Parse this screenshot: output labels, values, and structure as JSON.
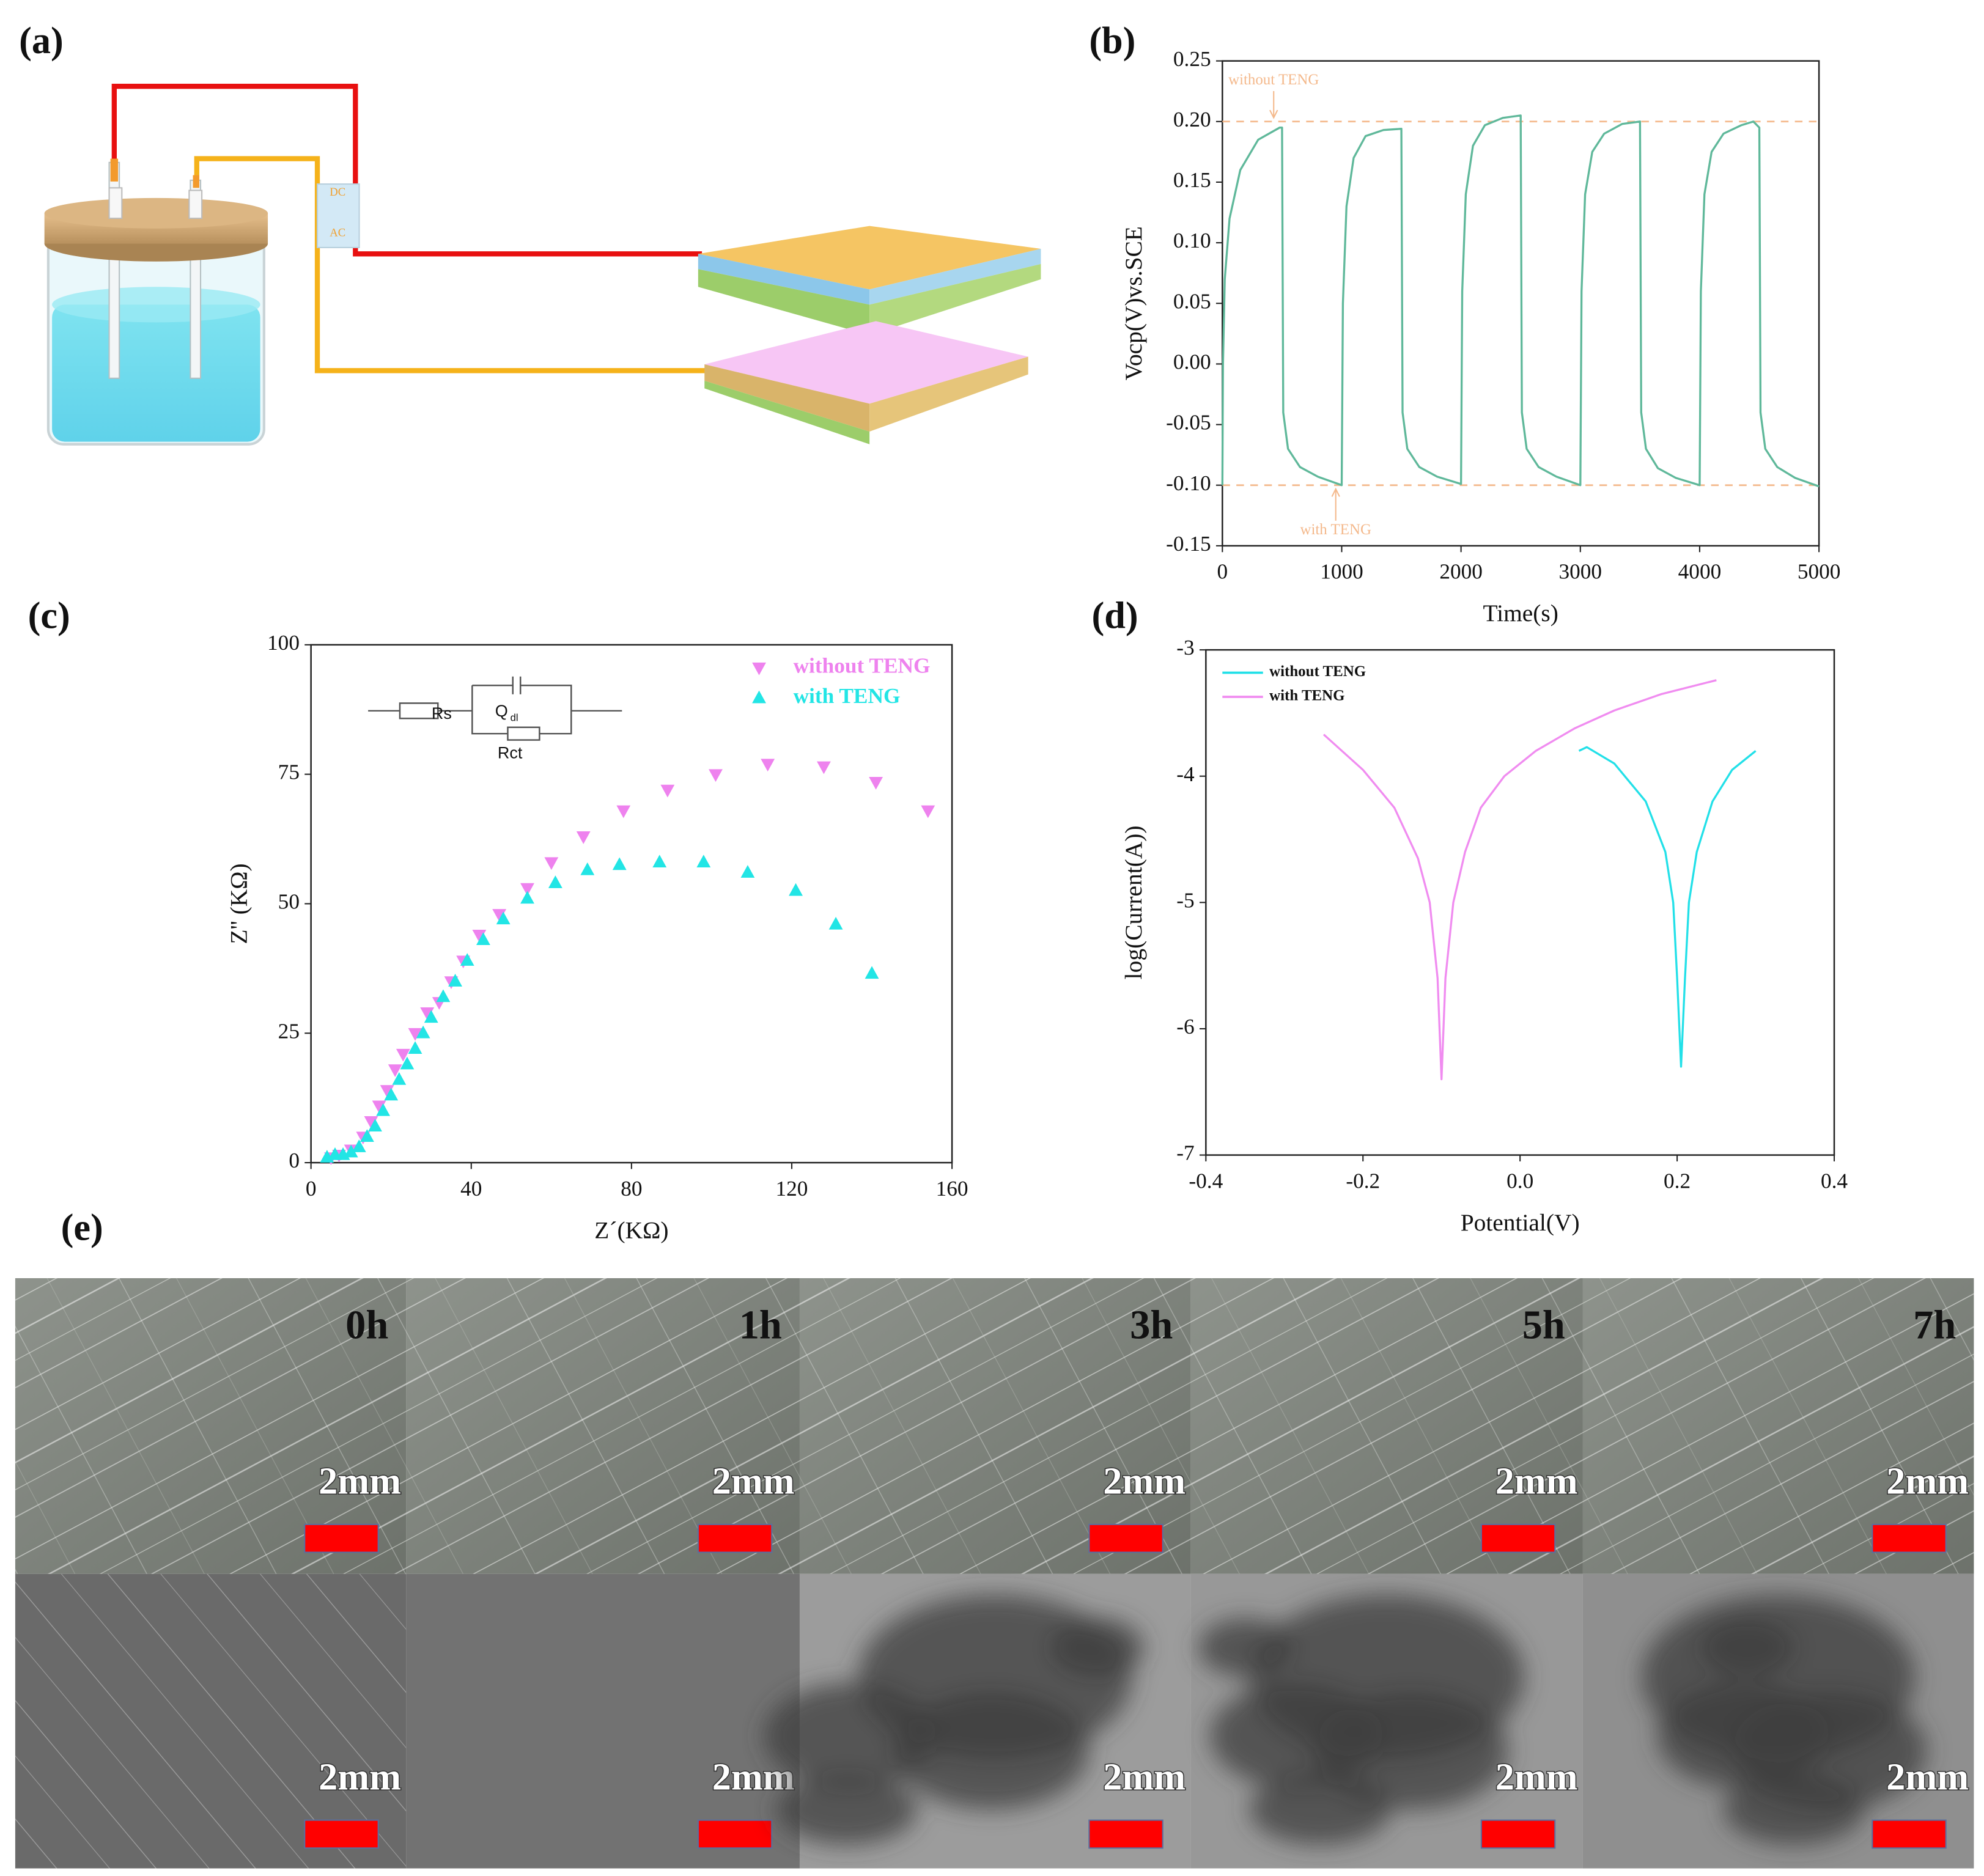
{
  "panel_labels": [
    "(a)",
    "(b)",
    "(c)",
    "(d)",
    "(e)"
  ],
  "diagram": {
    "labels": [
      "DC",
      "AC"
    ]
  },
  "chart_data": [
    {
      "type": "line",
      "xlabel": "Time(s)",
      "ylabel": "Vocp(V)vs.SCE",
      "xlim": [
        0,
        5000
      ],
      "xticks": [
        0,
        1000,
        2000,
        3000,
        4000,
        5000
      ],
      "ylim": [
        -0.15,
        0.25
      ],
      "yticks": [
        -0.15,
        {
          "value": -0.1,
          "label": "-0.10"
        },
        -0.05,
        {
          "value": 0,
          "label": "0.00"
        },
        0.05,
        {
          "value": 0.1,
          "label": "0.10"
        },
        0.15,
        {
          "value": 0.2,
          "label": "0.20"
        },
        0.25
      ],
      "reference_lines": [
        {
          "value": 0.2,
          "label": "without TENG",
          "color": "#f4b98c"
        },
        {
          "value": -0.1,
          "label": "with TENG",
          "color": "#f4b98c"
        }
      ],
      "series": [
        {
          "color": "#5fb89a",
          "x": [
            0,
            5,
            20,
            60,
            150,
            300,
            480,
            500,
            510,
            550,
            650,
            800,
            1000,
            1010,
            1040,
            1100,
            1200,
            1350,
            1500,
            1510,
            1550,
            1650,
            1800,
            2000,
            2010,
            2040,
            2100,
            2200,
            2350,
            2500,
            2510,
            2550,
            2650,
            2800,
            3000,
            3010,
            3040,
            3100,
            3200,
            3350,
            3500,
            3510,
            3550,
            3650,
            3800,
            4000,
            4010,
            4040,
            4100,
            4200,
            4350,
            4450,
            4500,
            4510,
            4550,
            4650,
            4800,
            5000
          ],
          "values": [
            -0.1,
            0.0,
            0.07,
            0.12,
            0.16,
            0.185,
            0.195,
            0.195,
            -0.04,
            -0.07,
            -0.085,
            -0.093,
            -0.1,
            0.05,
            0.13,
            0.17,
            0.188,
            0.193,
            0.194,
            -0.04,
            -0.07,
            -0.085,
            -0.093,
            -0.099,
            0.06,
            0.14,
            0.18,
            0.197,
            0.203,
            0.205,
            -0.04,
            -0.07,
            -0.085,
            -0.093,
            -0.1,
            0.06,
            0.14,
            0.175,
            0.19,
            0.198,
            0.2,
            -0.04,
            -0.07,
            -0.086,
            -0.094,
            -0.1,
            0.06,
            0.14,
            0.175,
            0.19,
            0.197,
            0.2,
            0.195,
            -0.04,
            -0.07,
            -0.085,
            -0.094,
            -0.101
          ]
        }
      ]
    },
    {
      "type": "scatter",
      "xlabel": "Z´(KΩ)",
      "ylabel": "Z'' (KΩ)",
      "xlim": [
        0,
        160
      ],
      "xticks": [
        0,
        40,
        80,
        120,
        160
      ],
      "ylim": [
        0,
        100
      ],
      "yticks": [
        0,
        25,
        50,
        75,
        100
      ],
      "legend": "upper right",
      "inset": {
        "labels": [
          "Rs",
          "Q",
          "dl",
          "Rct"
        ]
      },
      "series": [
        {
          "name": "without TENG",
          "color": "#ee82ee",
          "marker": "triangle-down",
          "x": [
            5,
            7,
            10,
            13,
            15,
            17,
            19,
            21,
            23,
            26,
            29,
            32,
            35,
            38,
            42,
            47,
            54,
            60,
            68,
            78,
            89,
            101,
            114,
            128,
            141,
            154
          ],
          "values": [
            1,
            1.5,
            2.5,
            5,
            8,
            11,
            14,
            18,
            21,
            25,
            29,
            31,
            35,
            39,
            44,
            48,
            53,
            58,
            63,
            68,
            72,
            75,
            77,
            76.5,
            73.5,
            68
          ]
        },
        {
          "name": "with TENG",
          "color": "#22e5e5",
          "marker": "triangle-up",
          "x": [
            4,
            6,
            8,
            10,
            12,
            14,
            16,
            18,
            20,
            22,
            24,
            26,
            28,
            30,
            33,
            36,
            39,
            43,
            48,
            54,
            61,
            69,
            77,
            87,
            98,
            109,
            121,
            131,
            140
          ],
          "values": [
            1,
            1.5,
            1.5,
            2,
            3,
            5,
            7,
            10,
            13,
            16,
            19,
            22,
            25,
            28,
            32,
            35,
            39,
            43,
            47,
            51,
            54,
            56.5,
            57.5,
            58,
            58,
            56,
            52.5,
            46,
            36.5
          ]
        }
      ]
    },
    {
      "type": "line",
      "xlabel": "Potential(V)",
      "ylabel": "log(Current(A))",
      "xlim": [
        -0.4,
        0.4
      ],
      "xticks": [
        -0.4,
        -0.2,
        {
          "value": 0,
          "label": "0.0"
        },
        0.2,
        0.4
      ],
      "ylim": [
        -7,
        -3
      ],
      "yticks": [
        -7,
        -6,
        -5,
        -4,
        -3
      ],
      "legend": "upper left",
      "series": [
        {
          "name": "without TENG",
          "color": "#22e0e8",
          "x": [
            0.075,
            0.085,
            0.12,
            0.16,
            0.185,
            0.195,
            0.2,
            0.205,
            0.21,
            0.215,
            0.225,
            0.245,
            0.27,
            0.3
          ],
          "values": [
            -3.8,
            -3.77,
            -3.9,
            -4.2,
            -4.6,
            -5.0,
            -5.6,
            -6.3,
            -5.6,
            -5.0,
            -4.6,
            -4.2,
            -3.95,
            -3.8
          ]
        },
        {
          "name": "with TENG",
          "color": "#f08cf0",
          "x": [
            -0.25,
            -0.2,
            -0.16,
            -0.13,
            -0.115,
            -0.105,
            -0.1,
            -0.095,
            -0.085,
            -0.07,
            -0.05,
            -0.02,
            0.02,
            0.07,
            0.12,
            0.18,
            0.25
          ],
          "values": [
            -3.67,
            -3.95,
            -4.25,
            -4.65,
            -5.0,
            -5.6,
            -6.4,
            -5.6,
            -5.0,
            -4.6,
            -4.25,
            -4.0,
            -3.8,
            -3.62,
            -3.48,
            -3.35,
            -3.24
          ]
        }
      ]
    }
  ],
  "micrographs": {
    "times": [
      "0h",
      "1h",
      "3h",
      "5h",
      "7h"
    ],
    "scale_bar": "2mm"
  }
}
